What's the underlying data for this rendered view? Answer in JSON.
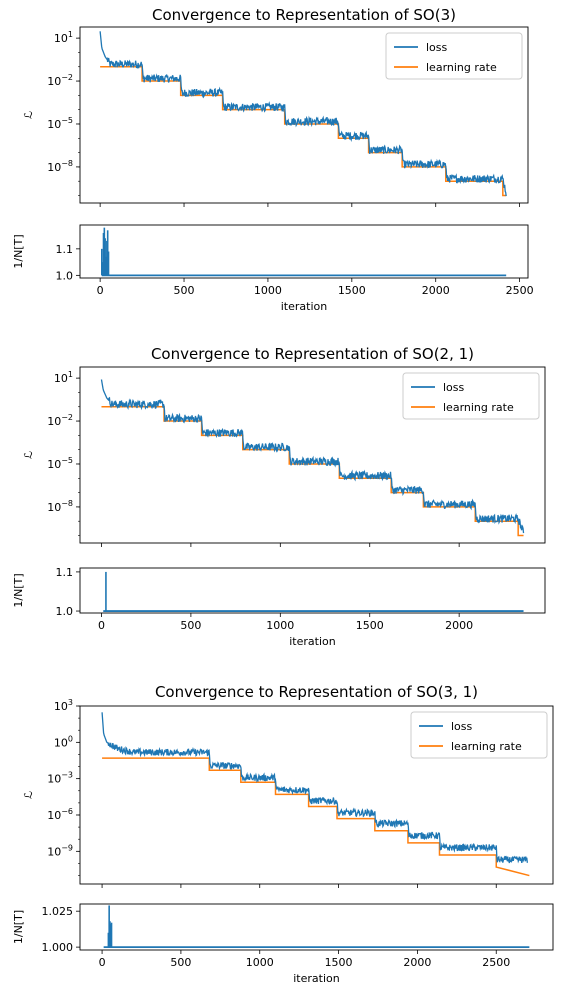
{
  "colors": {
    "loss": "#1f77b4",
    "learning_rate": "#ff7f0e"
  },
  "chart_data": [
    {
      "type": "line",
      "title": "Convergence to Representation of SO(3)",
      "ylabel": "ℒ",
      "yscale": "log",
      "ylim": [
        3e-11,
        60
      ],
      "yticks": [
        {
          "v": 10,
          "b": "10",
          "e": "1"
        },
        {
          "v": 0.01,
          "b": "10",
          "e": "−2"
        },
        {
          "v": 1e-05,
          "b": "10",
          "e": "−5"
        },
        {
          "v": 1e-08,
          "b": "10",
          "e": "−8"
        }
      ],
      "xlim": [
        -120,
        2550
      ],
      "legend": {
        "position": "top-right",
        "entries": [
          "loss",
          "learning rate"
        ]
      },
      "series": [
        {
          "name": "learning rate",
          "type": "step",
          "x": [
            0,
            250,
            250,
            480,
            480,
            730,
            730,
            1100,
            1100,
            1420,
            1420,
            1600,
            1600,
            1800,
            1800,
            2060,
            2060,
            2400,
            2400,
            2420
          ],
          "y": [
            0.1,
            0.1,
            0.01,
            0.01,
            0.001,
            0.001,
            0.0001,
            0.0001,
            1e-05,
            1e-05,
            1e-06,
            1e-06,
            1e-07,
            1e-07,
            1e-08,
            1e-08,
            1e-09,
            1e-09,
            1e-10,
            1e-10
          ]
        },
        {
          "name": "loss",
          "type": "noisy",
          "x": [
            0,
            10,
            30,
            60,
            250,
            255,
            480,
            485,
            730,
            735,
            1100,
            1105,
            1420,
            1425,
            1600,
            1605,
            1800,
            1805,
            2060,
            2065,
            2400,
            2420
          ],
          "y": [
            30,
            2,
            0.5,
            0.15,
            0.15,
            0.015,
            0.015,
            0.0015,
            0.0015,
            0.00015,
            0.00015,
            1.5e-05,
            1.5e-05,
            1.5e-06,
            1.5e-06,
            1.5e-07,
            1.5e-07,
            1.5e-08,
            1.5e-08,
            1.5e-09,
            1.5e-09,
            1.5e-10
          ]
        }
      ]
    },
    {
      "type": "bar",
      "ylabel": "1/N[T]",
      "xlabel": "iteration",
      "ylim": [
        0.99,
        1.19
      ],
      "yticks": [
        {
          "v": 1.0,
          "l": "1.0"
        },
        {
          "v": 1.1,
          "l": "1.1"
        }
      ],
      "xlim": [
        -120,
        2550
      ],
      "xticks": [
        0,
        500,
        1000,
        1500,
        2000,
        2500
      ],
      "baseline": {
        "from": 10,
        "to": 2420,
        "value": 1.0
      },
      "spikes": {
        "x": [
          10,
          15,
          20,
          25,
          30,
          35,
          40,
          45,
          50
        ],
        "y": [
          1.1,
          1.05,
          1.16,
          1.18,
          1.14,
          1.07,
          1.13,
          1.17,
          1.09
        ]
      }
    },
    {
      "type": "line",
      "title": "Convergence to Representation of SO(2, 1)",
      "ylabel": "ℒ",
      "yscale": "log",
      "ylim": [
        3e-11,
        60
      ],
      "yticks": [
        {
          "v": 10,
          "b": "10",
          "e": "1"
        },
        {
          "v": 0.01,
          "b": "10",
          "e": "−2"
        },
        {
          "v": 1e-05,
          "b": "10",
          "e": "−5"
        },
        {
          "v": 1e-08,
          "b": "10",
          "e": "−8"
        }
      ],
      "xlim": [
        -120,
        2480
      ],
      "legend": {
        "position": "top-right",
        "entries": [
          "loss",
          "learning rate"
        ]
      },
      "series": [
        {
          "name": "learning rate",
          "type": "step",
          "x": [
            0,
            350,
            350,
            560,
            560,
            790,
            790,
            1050,
            1050,
            1330,
            1330,
            1620,
            1620,
            1800,
            1800,
            2090,
            2090,
            2330,
            2330,
            2360
          ],
          "y": [
            0.1,
            0.1,
            0.01,
            0.01,
            0.001,
            0.001,
            0.0001,
            0.0001,
            1e-05,
            1e-05,
            1e-06,
            1e-06,
            1e-07,
            1e-07,
            1e-08,
            1e-08,
            1e-09,
            1e-09,
            1e-10,
            1e-10
          ]
        },
        {
          "name": "loss",
          "type": "noisy",
          "x": [
            0,
            10,
            30,
            60,
            350,
            355,
            560,
            565,
            790,
            795,
            1050,
            1055,
            1330,
            1335,
            1620,
            1625,
            1800,
            1805,
            2090,
            2095,
            2330,
            2360
          ],
          "y": [
            8,
            1.5,
            0.4,
            0.15,
            0.15,
            0.015,
            0.015,
            0.0015,
            0.0015,
            0.00015,
            0.00015,
            1.5e-05,
            1.5e-05,
            1.5e-06,
            1.5e-06,
            1.5e-07,
            1.5e-07,
            1.5e-08,
            1.5e-08,
            1.5e-09,
            1.5e-09,
            1.5e-10
          ]
        }
      ]
    },
    {
      "type": "bar",
      "ylabel": "1/N[T]",
      "xlabel": "iteration",
      "ylim": [
        0.995,
        1.11
      ],
      "yticks": [
        {
          "v": 1.0,
          "l": "1.0"
        },
        {
          "v": 1.1,
          "l": "1.1"
        }
      ],
      "xlim": [
        -120,
        2480
      ],
      "xticks": [
        0,
        500,
        1000,
        1500,
        2000
      ],
      "baseline": {
        "from": 10,
        "to": 2360,
        "value": 1.0
      },
      "spikes": {
        "x": [
          25
        ],
        "y": [
          1.1
        ]
      }
    },
    {
      "type": "line",
      "title": "Convergence to Representation of SO(3, 1)",
      "ylabel": "ℒ",
      "yscale": "log",
      "ylim": [
        2e-12,
        1000
      ],
      "yticks": [
        {
          "v": 1000,
          "b": "10",
          "e": "3"
        },
        {
          "v": 1,
          "b": "10",
          "e": "0"
        },
        {
          "v": 0.001,
          "b": "10",
          "e": "−3"
        },
        {
          "v": 1e-06,
          "b": "10",
          "e": "−6"
        },
        {
          "v": 1e-09,
          "b": "10",
          "e": "−9"
        }
      ],
      "xlim": [
        -140,
        2860
      ],
      "legend": {
        "position": "top-right",
        "entries": [
          "loss",
          "learning rate"
        ]
      },
      "series": [
        {
          "name": "learning rate",
          "type": "step",
          "x": [
            0,
            680,
            680,
            880,
            880,
            1100,
            1100,
            1310,
            1310,
            1490,
            1490,
            1730,
            1730,
            1940,
            1940,
            2140,
            2140,
            2500,
            2500,
            2710
          ],
          "y": [
            0.05,
            0.05,
            0.005,
            0.005,
            0.0005,
            0.0005,
            5e-05,
            5e-05,
            5e-06,
            5e-06,
            5e-07,
            5e-07,
            5e-08,
            5e-08,
            5e-09,
            5e-09,
            5e-10,
            5e-10,
            5e-11,
            1e-11
          ]
        },
        {
          "name": "loss",
          "type": "noisy",
          "x": [
            0,
            10,
            30,
            100,
            200,
            680,
            685,
            880,
            885,
            1100,
            1105,
            1310,
            1315,
            1490,
            1495,
            1730,
            1735,
            1940,
            1945,
            2140,
            2145,
            2500,
            2505,
            2700
          ],
          "y": [
            300,
            5,
            1,
            0.3,
            0.15,
            0.15,
            0.012,
            0.012,
            0.0012,
            0.0012,
            0.00012,
            0.00012,
            1.5e-05,
            1.5e-05,
            1.5e-06,
            1.5e-06,
            2e-07,
            2e-07,
            2e-08,
            2e-08,
            2e-09,
            2e-09,
            2e-10,
            2e-10
          ]
        }
      ]
    },
    {
      "type": "bar",
      "ylabel": "1/N[T]",
      "xlabel": "iteration",
      "ylim": [
        0.998,
        1.03
      ],
      "yticks": [
        {
          "v": 1.0,
          "l": "1.000"
        },
        {
          "v": 1.025,
          "l": "1.025"
        }
      ],
      "xlim": [
        -140,
        2860
      ],
      "xticks": [
        0,
        500,
        1000,
        1500,
        2000,
        2500
      ],
      "baseline": {
        "from": 10,
        "to": 2710,
        "value": 1.0
      },
      "spikes": {
        "x": [
          40,
          45,
          50,
          55,
          60
        ],
        "y": [
          1.01,
          1.029,
          1.018,
          1.016,
          1.017
        ]
      }
    }
  ]
}
